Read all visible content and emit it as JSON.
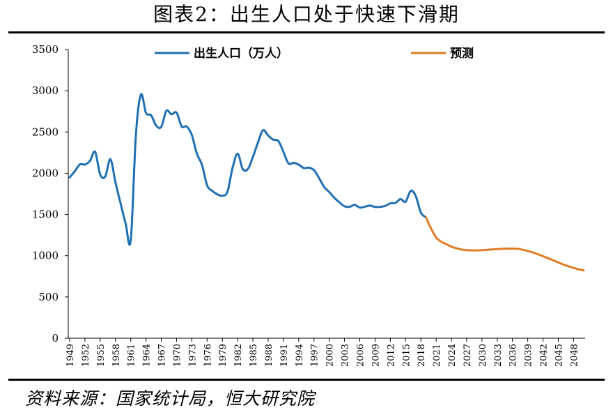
{
  "page": {
    "title": "图表2：出生人口处于快速下滑期",
    "source": "资料来源：国家统计局，恒大研究院"
  },
  "colors": {
    "actual": "#1f6fb2",
    "forecast": "#e07b24",
    "axis": "#000000"
  },
  "chart_data": {
    "type": "line",
    "ylim": [
      0,
      3500
    ],
    "yticks": [
      0,
      500,
      1000,
      1500,
      2000,
      2500,
      3000,
      3500
    ],
    "xlim": [
      1949,
      2050
    ],
    "xticks": [
      "1949",
      "1952",
      "1955",
      "1958",
      "1961",
      "1964",
      "1967",
      "1970",
      "1973",
      "1976",
      "1979",
      "1982",
      "1985",
      "1988",
      "1991",
      "1994",
      "1997",
      "2000",
      "2003",
      "2006",
      "2009",
      "2012",
      "2015",
      "2018",
      "2021",
      "2024",
      "2027",
      "2030",
      "2033",
      "2036",
      "2039",
      "2042",
      "2045",
      "2048"
    ],
    "grid": false,
    "legend_position": "top",
    "series": [
      {
        "name": "出生人口（万人）",
        "color_key": "actual",
        "x": [
          1949,
          1950,
          1951,
          1952,
          1953,
          1954,
          1955,
          1956,
          1957,
          1958,
          1959,
          1960,
          1961,
          1962,
          1963,
          1964,
          1965,
          1966,
          1967,
          1968,
          1969,
          1970,
          1971,
          1972,
          1973,
          1974,
          1975,
          1976,
          1977,
          1978,
          1979,
          1980,
          1981,
          1982,
          1983,
          1984,
          1985,
          1986,
          1987,
          1988,
          1989,
          1990,
          1991,
          1992,
          1993,
          1994,
          1995,
          1996,
          1997,
          1998,
          1999,
          2000,
          2001,
          2002,
          2003,
          2004,
          2005,
          2006,
          2007,
          2008,
          2009,
          2010,
          2011,
          2012,
          2013,
          2014,
          2015,
          2016,
          2017,
          2018,
          2019
        ],
        "values": [
          1950,
          2023,
          2107,
          2105,
          2151,
          2260,
          1984,
          1961,
          2169,
          1889,
          1635,
          1389,
          1187,
          2451,
          2954,
          2729,
          2704,
          2577,
          2563,
          2757,
          2715,
          2736,
          2567,
          2566,
          2463,
          2235,
          2102,
          1853,
          1786,
          1745,
          1727,
          1776,
          2064,
          2237,
          2052,
          2050,
          2196,
          2374,
          2522,
          2457,
          2407,
          2391,
          2258,
          2119,
          2126,
          2104,
          2063,
          2067,
          2038,
          1942,
          1834,
          1771,
          1702,
          1647,
          1599,
          1593,
          1617,
          1584,
          1594,
          1608,
          1591,
          1592,
          1604,
          1635,
          1640,
          1687,
          1655,
          1786,
          1723,
          1523,
          1465
        ]
      },
      {
        "name": "预测",
        "color_key": "forecast",
        "x": [
          2019,
          2020,
          2021,
          2022,
          2023,
          2024,
          2025,
          2026,
          2027,
          2028,
          2029,
          2030,
          2031,
          2032,
          2033,
          2034,
          2035,
          2036,
          2037,
          2038,
          2039,
          2040,
          2041,
          2042,
          2043,
          2044,
          2045,
          2046,
          2047,
          2048,
          2049,
          2050
        ],
        "values": [
          1465,
          1330,
          1220,
          1170,
          1140,
          1110,
          1090,
          1075,
          1068,
          1065,
          1065,
          1067,
          1072,
          1076,
          1080,
          1084,
          1086,
          1086,
          1084,
          1072,
          1058,
          1040,
          1018,
          994,
          970,
          945,
          918,
          893,
          872,
          852,
          835,
          822
        ]
      }
    ]
  }
}
